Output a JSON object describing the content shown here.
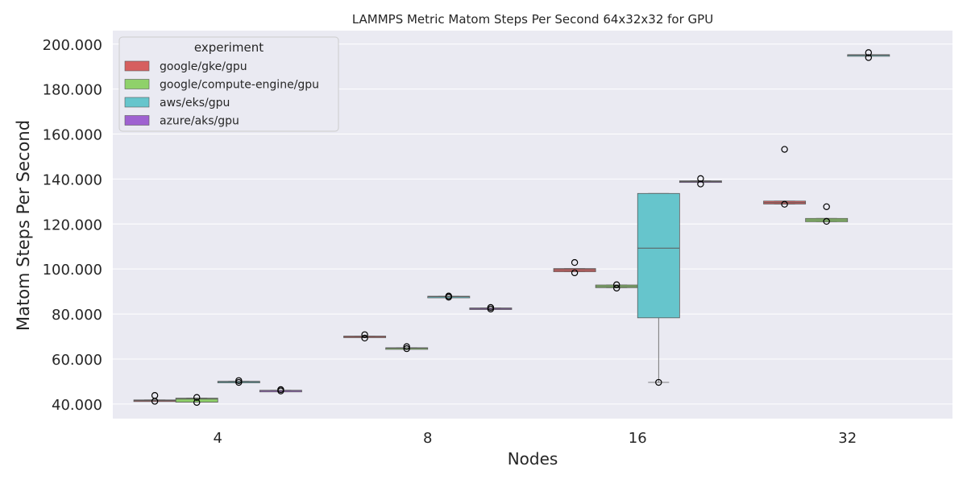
{
  "chart_data": {
    "type": "box",
    "title": "LAMMPS Metric Matom Steps Per Second 64x32x32 for GPU",
    "xlabel": "Nodes",
    "ylabel": "Matom Steps Per Second",
    "ylim": [
      33.5,
      206
    ],
    "yticks": [
      40,
      60,
      80,
      100,
      120,
      140,
      160,
      180,
      200
    ],
    "ytick_labels": [
      "40.000",
      "60.000",
      "80.000",
      "100.000",
      "120.000",
      "140.000",
      "160.000",
      "180.000",
      "200.000"
    ],
    "categories": [
      "4",
      "8",
      "16",
      "32"
    ],
    "legend": {
      "title": "experiment",
      "placement": "top-left",
      "entries": [
        {
          "label": "google/gke/gpu",
          "color": "#d65f5f"
        },
        {
          "label": "google/compute-engine/gpu",
          "color": "#8fd16a"
        },
        {
          "label": "aws/eks/gpu",
          "color": "#66c5cc"
        },
        {
          "label": "azure/aks/gpu",
          "color": "#9f62d1"
        }
      ]
    },
    "series": [
      {
        "name": "google/gke/gpu",
        "color": "#d65f5f",
        "boxes": [
          {
            "category": "4",
            "q1": 41.3,
            "median": 41.5,
            "q3": 41.8,
            "whisker_low": 41.3,
            "whisker_high": 41.8,
            "outliers": [
              43.8,
              41.2
            ]
          },
          {
            "category": "8",
            "q1": 69.8,
            "median": 70.0,
            "q3": 70.2,
            "whisker_low": 69.8,
            "whisker_high": 70.2,
            "outliers": [
              70.8,
              69.3
            ]
          },
          {
            "category": "16",
            "q1": 98.8,
            "median": 99.6,
            "q3": 100.2,
            "whisker_low": 98.8,
            "whisker_high": 100.2,
            "outliers": [
              102.9,
              98.3
            ]
          },
          {
            "category": "32",
            "q1": 128.9,
            "median": 129.5,
            "q3": 130.2,
            "whisker_low": 128.9,
            "whisker_high": 130.2,
            "outliers": [
              153.2,
              128.8
            ]
          }
        ]
      },
      {
        "name": "google/compute-engine/gpu",
        "color": "#8fd16a",
        "boxes": [
          {
            "category": "4",
            "q1": 40.8,
            "median": 42.2,
            "q3": 42.6,
            "whisker_low": 40.8,
            "whisker_high": 42.6,
            "outliers": [
              42.9,
              40.7
            ]
          },
          {
            "category": "8",
            "q1": 64.5,
            "median": 64.8,
            "q3": 65.0,
            "whisker_low": 64.5,
            "whisker_high": 65.0,
            "outliers": [
              65.5,
              64.6
            ]
          },
          {
            "category": "16",
            "q1": 91.7,
            "median": 92.3,
            "q3": 92.9,
            "whisker_low": 91.7,
            "whisker_high": 92.9,
            "outliers": [
              93.0,
              91.5
            ]
          },
          {
            "category": "32",
            "q1": 121.0,
            "median": 121.8,
            "q3": 122.5,
            "whisker_low": 121.0,
            "whisker_high": 122.5,
            "outliers": [
              127.7,
              121.2
            ]
          }
        ]
      },
      {
        "name": "aws/eks/gpu",
        "color": "#66c5cc",
        "boxes": [
          {
            "category": "4",
            "q1": 49.6,
            "median": 49.9,
            "q3": 50.1,
            "whisker_low": 49.6,
            "whisker_high": 50.1,
            "outliers": [
              50.4,
              49.6
            ]
          },
          {
            "category": "8",
            "q1": 87.4,
            "median": 87.7,
            "q3": 87.9,
            "whisker_low": 87.4,
            "whisker_high": 87.9,
            "outliers": [
              88.0,
              87.5
            ]
          },
          {
            "category": "16",
            "q1": 78.3,
            "median": 109.3,
            "q3": 133.6,
            "whisker_low": 49.6,
            "whisker_high": 133.6,
            "outliers": [
              49.6
            ]
          },
          {
            "category": "32",
            "q1": 194.8,
            "median": 195.1,
            "q3": 195.3,
            "whisker_low": 194.8,
            "whisker_high": 195.3,
            "outliers": [
              196.2,
              194.0
            ]
          }
        ]
      },
      {
        "name": "azure/aks/gpu",
        "color": "#9f62d1",
        "boxes": [
          {
            "category": "4",
            "q1": 45.9,
            "median": 46.0,
            "q3": 46.1,
            "whisker_low": 45.9,
            "whisker_high": 46.1,
            "outliers": [
              46.4,
              45.8
            ]
          },
          {
            "category": "8",
            "q1": 82.3,
            "median": 82.5,
            "q3": 82.7,
            "whisker_low": 82.3,
            "whisker_high": 82.7,
            "outliers": [
              82.9,
              82.2
            ]
          },
          {
            "category": "16",
            "q1": 138.6,
            "median": 138.9,
            "q3": 139.2,
            "whisker_low": 138.6,
            "whisker_high": 139.2,
            "outliers": [
              140.2,
              137.8
            ]
          }
        ]
      }
    ]
  }
}
